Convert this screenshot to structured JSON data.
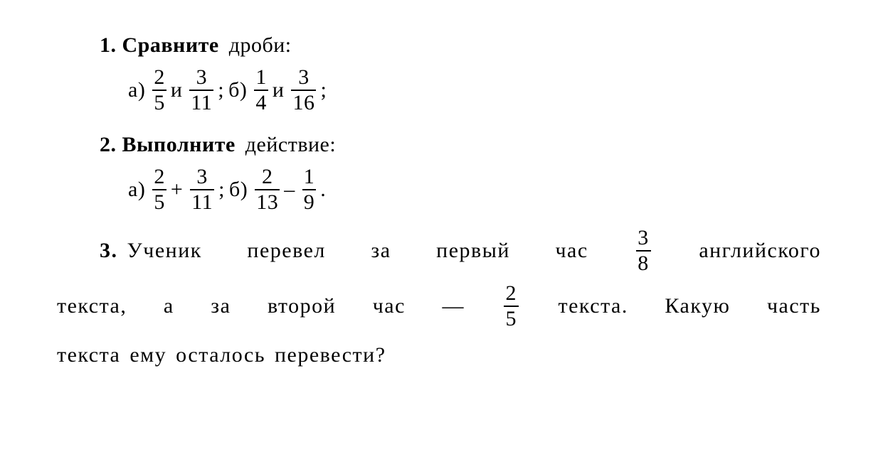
{
  "problem1": {
    "number": "1.",
    "title_bold": "Сравните",
    "title_rest": " дроби:",
    "part_a_label": "а)",
    "frac1": {
      "num": "2",
      "den": "5"
    },
    "and_word": "и",
    "frac2": {
      "num": "3",
      "den": "11"
    },
    "punct_a": ";",
    "part_b_label": "б)",
    "frac3": {
      "num": "1",
      "den": "4"
    },
    "frac4": {
      "num": "3",
      "den": "16"
    },
    "punct_b": ";"
  },
  "problem2": {
    "number": "2.",
    "title_bold": "Выполните",
    "title_rest": " действие:",
    "part_a_label": "а)",
    "frac1": {
      "num": "2",
      "den": "5"
    },
    "op1": "+",
    "frac2": {
      "num": "3",
      "den": "11"
    },
    "punct_a": ";",
    "part_b_label": "б)",
    "frac3": {
      "num": "2",
      "den": "13"
    },
    "op2": "–",
    "frac4": {
      "num": "1",
      "den": "9"
    },
    "punct_b": "."
  },
  "problem3": {
    "number": "3.",
    "text_before_f1_a": "Ученик",
    "text_before_f1_b": "перевел",
    "text_before_f1_c": "за",
    "text_before_f1_d": "первый",
    "text_before_f1_e": "час",
    "frac1": {
      "num": "3",
      "den": "8"
    },
    "text_after_f1": "английского",
    "row2_a": "текста,",
    "row2_b": "а",
    "row2_c": "за",
    "row2_d": "второй",
    "row2_e": "час",
    "row2_dash": "—",
    "frac2": {
      "num": "2",
      "den": "5"
    },
    "row2_f": "текста.",
    "row2_g": "Какую",
    "row2_h": "часть",
    "row3": "текста ему осталось перевести?"
  }
}
